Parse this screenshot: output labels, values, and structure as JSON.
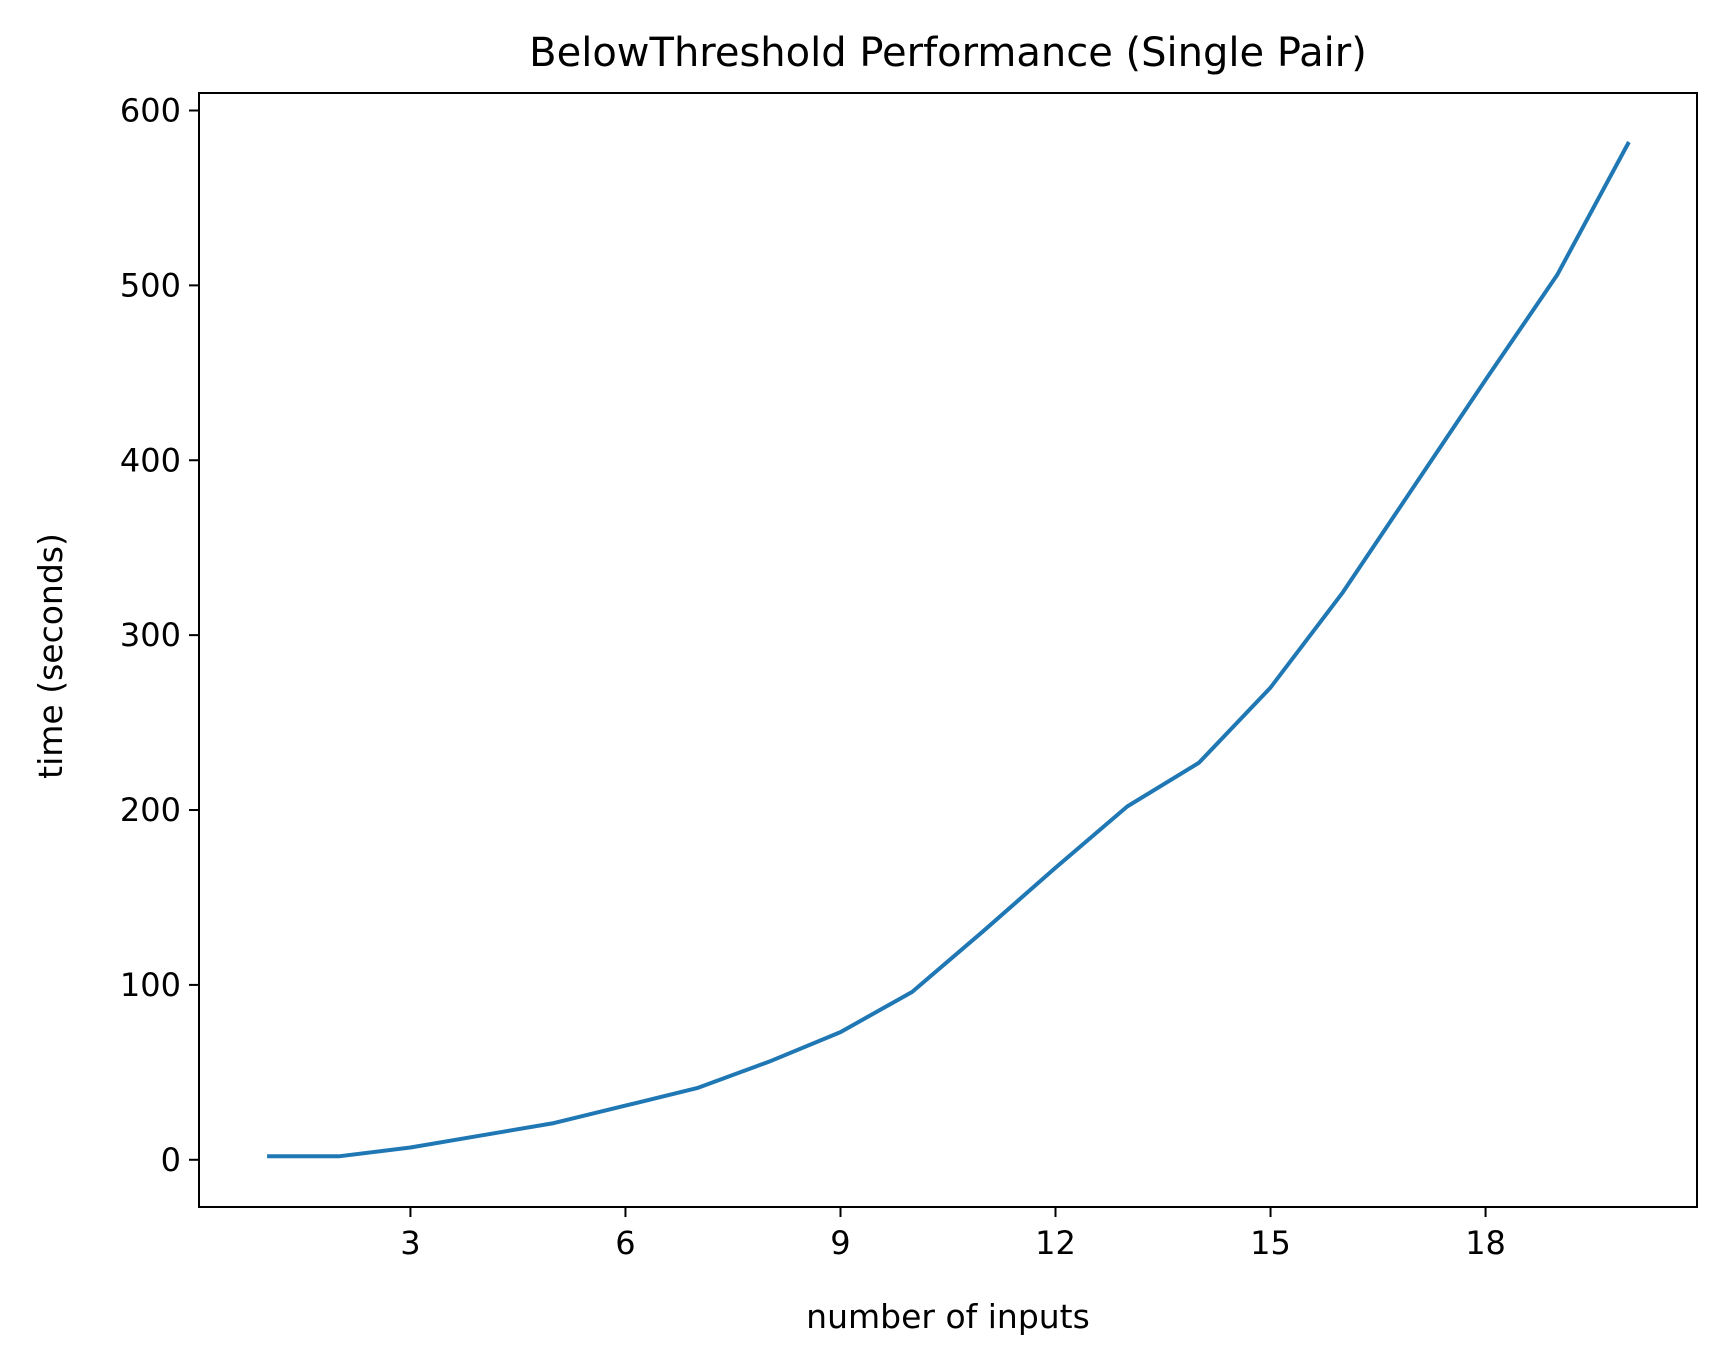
{
  "chart_data": {
    "type": "line",
    "title": "BelowThreshold Performance (Single Pair)",
    "xlabel": "number of inputs",
    "ylabel": "time (seconds)",
    "xlim": [
      0.05,
      20.95
    ],
    "ylim": [
      -27,
      610
    ],
    "xticks": [
      3,
      6,
      9,
      12,
      15,
      18
    ],
    "yticks": [
      0,
      100,
      200,
      300,
      400,
      500,
      600
    ],
    "grid": false,
    "legend": "none",
    "series": [
      {
        "color": "#1f77b4",
        "x": [
          1,
          2,
          3,
          4,
          5,
          6,
          7,
          8,
          9,
          10,
          11,
          12,
          13,
          14,
          15,
          16,
          17,
          18,
          19,
          20
        ],
        "y": [
          2,
          2,
          7,
          14,
          21,
          31,
          41,
          56,
          73,
          96,
          131,
          167,
          202,
          227,
          270,
          324,
          385,
          446,
          506,
          582
        ]
      }
    ]
  }
}
